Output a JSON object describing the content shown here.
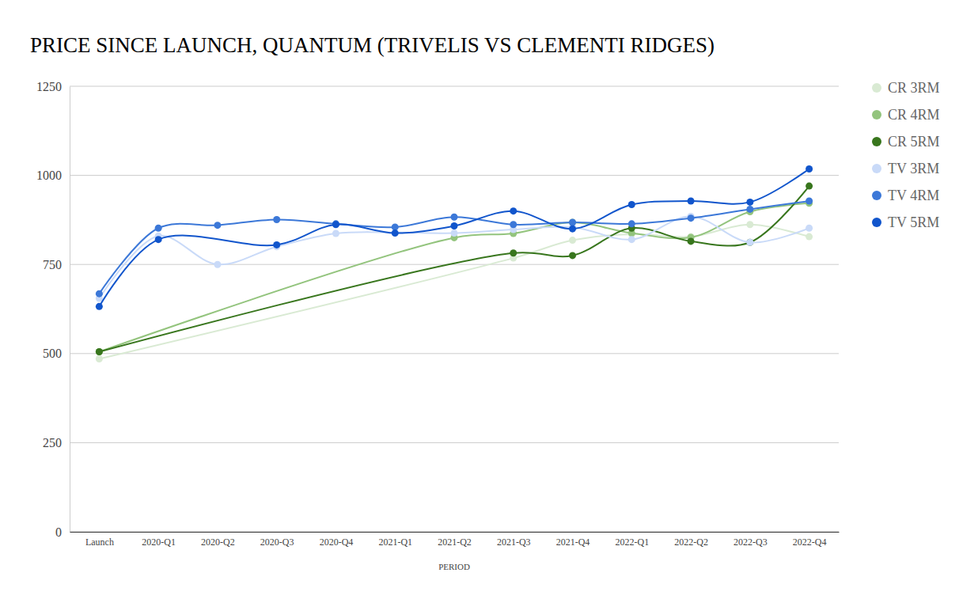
{
  "chart_data": {
    "type": "line",
    "title": "PRICE SINCE LAUNCH, QUANTUM (TRIVELIS VS CLEMENTI RIDGES)",
    "x_label": "PERIOD",
    "categories": [
      "Launch",
      "2020-Q1",
      "2020-Q2",
      "2020-Q3",
      "2020-Q4",
      "2021-Q1",
      "2021-Q2",
      "2021-Q3",
      "2021-Q4",
      "2022-Q1",
      "2022-Q2",
      "2022-Q3",
      "2022-Q4"
    ],
    "series": [
      {
        "name": "CR 3RM",
        "color": "#d9ead3",
        "values": [
          485,
          null,
          null,
          null,
          null,
          null,
          null,
          768,
          818,
          835,
          828,
          862,
          828
        ]
      },
      {
        "name": "CR 4RM",
        "color": "#93c47d",
        "values": [
          505,
          null,
          null,
          null,
          null,
          null,
          825,
          837,
          868,
          838,
          826,
          898,
          922
        ]
      },
      {
        "name": "CR 5RM",
        "color": "#38761d",
        "values": [
          505,
          null,
          null,
          null,
          null,
          null,
          null,
          782,
          775,
          852,
          815,
          812,
          970
        ]
      },
      {
        "name": "TV 3RM",
        "color": "#c9daf8",
        "values": [
          655,
          830,
          750,
          800,
          837,
          840,
          838,
          848,
          855,
          820,
          885,
          812,
          852
        ]
      },
      {
        "name": "TV 4RM",
        "color": "#3c78d8",
        "values": [
          668,
          852,
          860,
          876,
          864,
          855,
          883,
          862,
          868,
          864,
          880,
          905,
          928
        ]
      },
      {
        "name": "TV 5RM",
        "color": "#1155cc",
        "values": [
          632,
          820,
          null,
          805,
          862,
          838,
          858,
          900,
          850,
          918,
          928,
          925,
          1018
        ]
      }
    ],
    "ylim": [
      0,
      1250
    ],
    "yticks": [
      0,
      250,
      500,
      750,
      1000,
      1250
    ],
    "grid": true,
    "legend": "right",
    "marker": "circle",
    "line_style": "smooth"
  }
}
